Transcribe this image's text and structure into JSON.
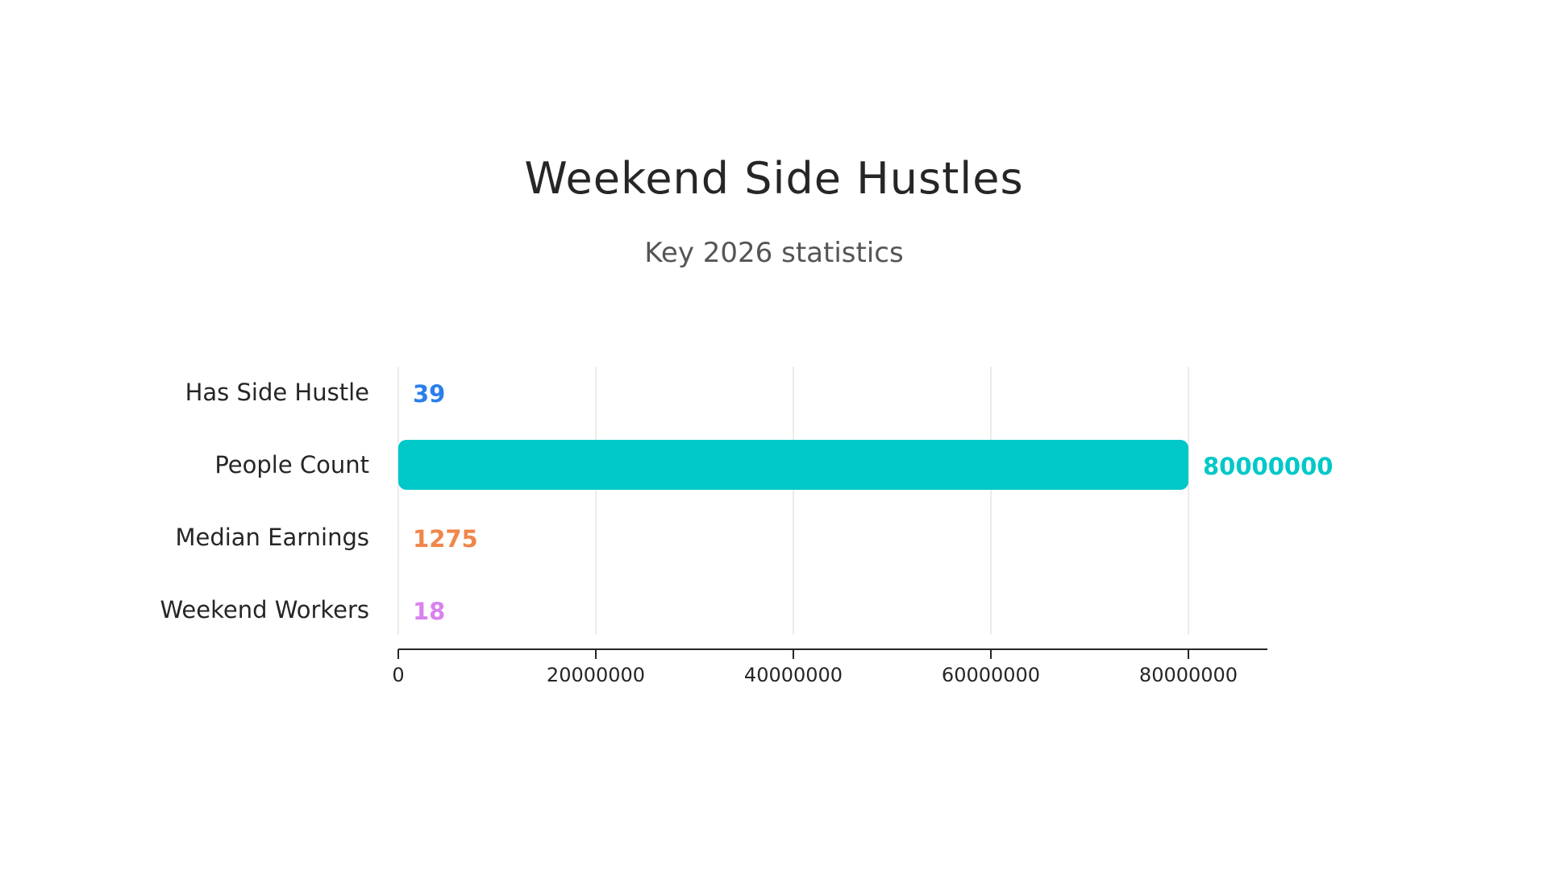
{
  "chart_data": {
    "type": "bar",
    "orientation": "horizontal",
    "title": "Weekend Side Hustles",
    "subtitle": "Key 2026 statistics",
    "xlabel": "",
    "ylabel": "",
    "categories": [
      "Has Side Hustle",
      "People Count",
      "Median Earnings",
      "Weekend Workers"
    ],
    "values": [
      39,
      80000000,
      1275,
      18
    ],
    "value_labels": [
      "39",
      "80000000",
      "1275",
      "18"
    ],
    "colors": [
      "#2b7fe8",
      "#00c8c8",
      "#f0864a",
      "#d982f0"
    ],
    "xlim": [
      0,
      88000000
    ],
    "x_ticks": [
      0,
      20000000,
      40000000,
      60000000,
      80000000
    ],
    "x_tick_labels": [
      "0",
      "20000000",
      "40000000",
      "60000000",
      "80000000"
    ],
    "grid": true,
    "legend": "none"
  }
}
